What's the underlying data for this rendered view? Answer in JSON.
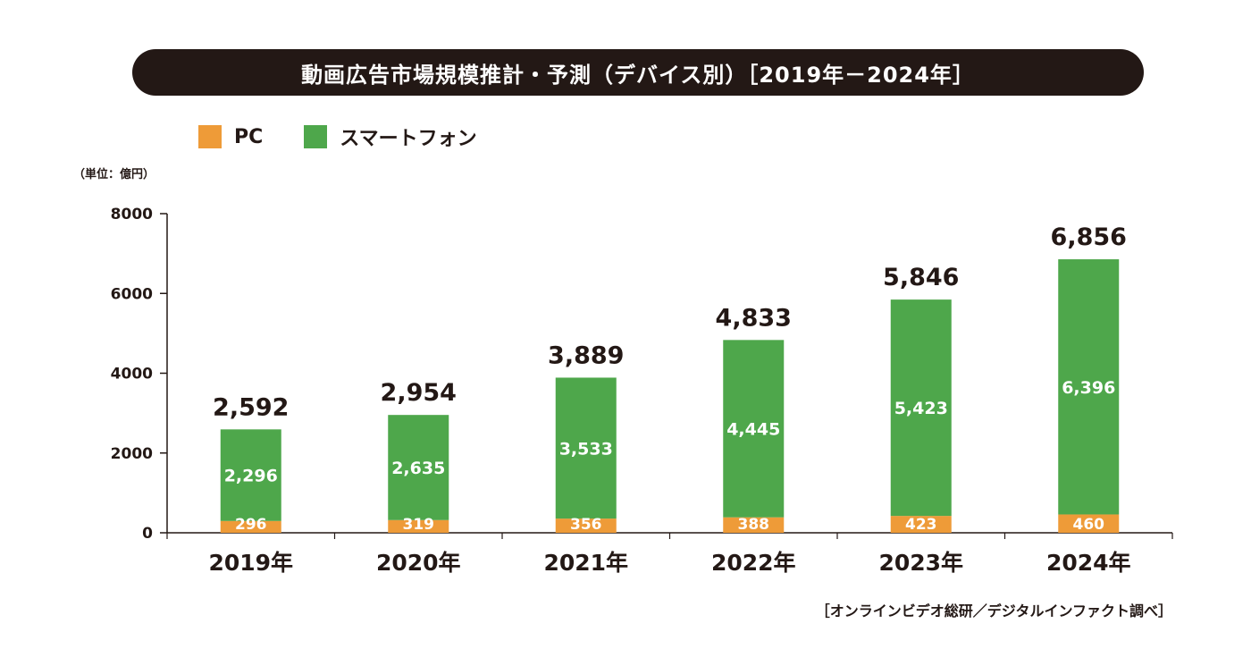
{
  "title": "動画広告市場規模推計・予測（デバイス別）［2019年－2024年］",
  "legend": [
    {
      "label": "PC",
      "color": "#EE9B38"
    },
    {
      "label": "スマートフォン",
      "color": "#4EA74B"
    }
  ],
  "unit_label": "（単位：億円）",
  "source": "［オンラインビデオ総研／デジタルインファクト調べ］",
  "chart_data": {
    "type": "bar",
    "stacked": true,
    "title": "動画広告市場規模推計・予測（デバイス別）［2019年－2024年］",
    "categories": [
      "2019年",
      "2020年",
      "2021年",
      "2022年",
      "2023年",
      "2024年"
    ],
    "series": [
      {
        "name": "PC",
        "color": "#EE9B38",
        "values": [
          296,
          319,
          356,
          388,
          423,
          460
        ],
        "labels": [
          "296",
          "319",
          "356",
          "388",
          "423",
          "460"
        ]
      },
      {
        "name": "スマートフォン",
        "color": "#4EA74B",
        "values": [
          2296,
          2635,
          3533,
          4445,
          5423,
          6396
        ],
        "labels": [
          "2,296",
          "2,635",
          "3,533",
          "4,445",
          "5,423",
          "6,396"
        ]
      }
    ],
    "totals": [
      2592,
      2954,
      3889,
      4833,
      5846,
      6856
    ],
    "total_labels": [
      "2,592",
      "2,954",
      "3,889",
      "4,833",
      "5,846",
      "6,856"
    ],
    "ylim": [
      0,
      8000
    ],
    "yticks": [
      0,
      2000,
      4000,
      6000,
      8000
    ],
    "ytick_labels": [
      "0",
      "2000",
      "4000",
      "6000",
      "8000"
    ],
    "xlabel": "",
    "ylabel": "（単位：億円）",
    "grid": false,
    "legend_position": "top-left"
  }
}
